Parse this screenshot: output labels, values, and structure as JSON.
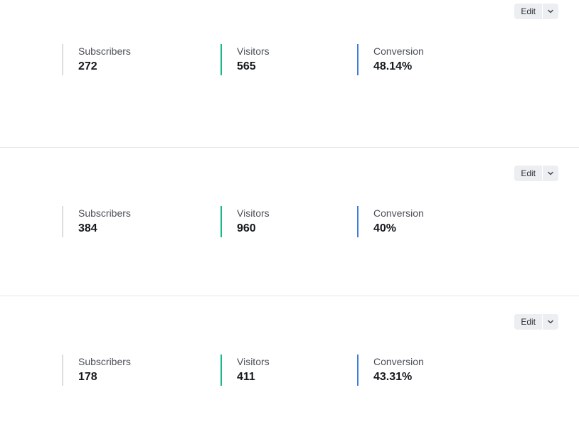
{
  "cards": [
    {
      "edit_label": "Edit",
      "stats": [
        {
          "label": "Subscribers",
          "value": "272"
        },
        {
          "label": "Visitors",
          "value": "565"
        },
        {
          "label": "Conversion",
          "value": "48.14%"
        }
      ]
    },
    {
      "edit_label": "Edit",
      "stats": [
        {
          "label": "Subscribers",
          "value": "384"
        },
        {
          "label": "Visitors",
          "value": "960"
        },
        {
          "label": "Conversion",
          "value": "40%"
        }
      ]
    },
    {
      "edit_label": "Edit",
      "stats": [
        {
          "label": "Subscribers",
          "value": "178"
        },
        {
          "label": "Visitors",
          "value": "411"
        },
        {
          "label": "Conversion",
          "value": "43.31%"
        }
      ]
    }
  ],
  "icons": {
    "dropdown": "chevron-down-icon"
  },
  "colors": {
    "subscribers_accent": "#dcdde1",
    "visitors_accent": "#1db88a",
    "conversion_accent": "#3b7ddd"
  }
}
